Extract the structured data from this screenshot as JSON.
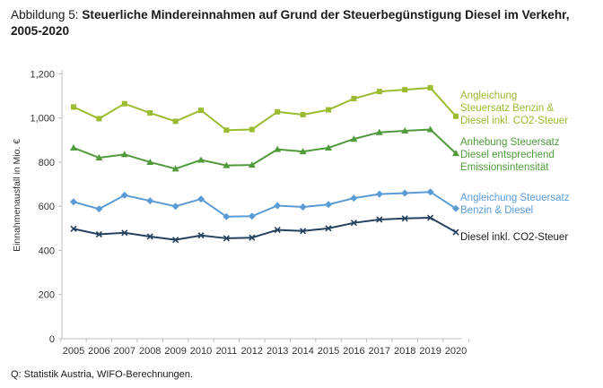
{
  "title": {
    "prefix": "Abbildung 5: ",
    "main": "Steuerliche Mindereinnahmen auf Grund der Steuerbegünstigung Diesel im Verkehr, 2005-2020"
  },
  "source": "Q: Statistik Austria, WIFO-Berechnungen.",
  "chart_data": {
    "type": "line",
    "ylabel": "Einnahmenausfall in Mio. €",
    "ylim": [
      0,
      1300
    ],
    "yticks": [
      0,
      200,
      400,
      600,
      800,
      1000,
      1200
    ],
    "ytick_labels": [
      "0",
      "200",
      "400",
      "600",
      "800",
      "1,000",
      "1,200"
    ],
    "categories": [
      "2005",
      "2006",
      "2007",
      "2008",
      "2009",
      "2010",
      "2011",
      "2012",
      "2013",
      "2014",
      "2015",
      "2016",
      "2017",
      "2018",
      "2019",
      "2020"
    ],
    "series": [
      {
        "name": "Angleichung Steuersatz Benzin & Diesel inkl. CO2-Steuer",
        "label_lines": [
          "Angleichung",
          "Steuersatz Benzin &",
          "Diesel inkl. CO2-Steuer"
        ],
        "color": "#9bbb30",
        "marker": "square",
        "values": [
          1050,
          997,
          1065,
          1023,
          985,
          1035,
          945,
          948,
          1028,
          1015,
          1037,
          1088,
          1120,
          1128,
          1137,
          1008
        ]
      },
      {
        "name": "Anhebung Steuersatz Diesel entsprechend Emissionsintensität",
        "label_lines": [
          "Anhebung Steuersatz",
          "Diesel entsprechend",
          "Emissionsintensität"
        ],
        "color": "#4f9a3a",
        "marker": "triangle",
        "values": [
          865,
          820,
          835,
          800,
          770,
          810,
          785,
          787,
          858,
          848,
          865,
          905,
          935,
          942,
          948,
          840
        ]
      },
      {
        "name": "Angleichung Steuersatz Benzin & Diesel",
        "label_lines": [
          "Angleichung Steuersatz",
          "Benzin & Diesel"
        ],
        "color": "#5a9bd5",
        "marker": "diamond",
        "values": [
          620,
          588,
          650,
          625,
          600,
          633,
          553,
          555,
          603,
          597,
          608,
          637,
          655,
          660,
          665,
          590
        ]
      },
      {
        "name": "Diesel inkl. CO2-Steuer",
        "label_lines": [
          "Diesel inkl. CO2-Steuer"
        ],
        "color": "#24415f",
        "marker": "x",
        "values": [
          498,
          473,
          480,
          463,
          448,
          468,
          455,
          458,
          493,
          488,
          500,
          525,
          540,
          545,
          548,
          483
        ]
      }
    ]
  }
}
